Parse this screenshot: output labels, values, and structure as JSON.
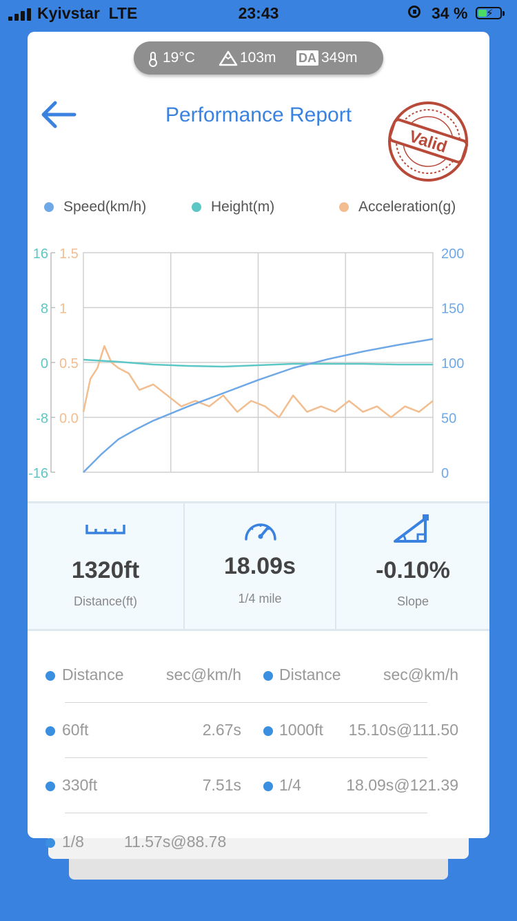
{
  "status_bar": {
    "carrier": "Kyivstar",
    "network": "LTE",
    "time": "23:43",
    "battery": "34 %"
  },
  "conditions": {
    "temperature": "19°C",
    "altitude": "103m",
    "da_badge": "DA",
    "density_altitude": "349m"
  },
  "header": {
    "title": "Performance Report",
    "stamp_text": "Valid"
  },
  "legend": [
    {
      "label": "Speed(km/h)",
      "color": "#6fa8e6"
    },
    {
      "label": "Height(m)",
      "color": "#5cc7c4"
    },
    {
      "label": "Acceleration(g)",
      "color": "#f2bd8f"
    }
  ],
  "chart_data": {
    "type": "line",
    "axes": {
      "height_ticks": [
        "16",
        "8",
        "0",
        "-8",
        "-16"
      ],
      "acceleration_ticks": [
        "1.5",
        "1",
        "0.5",
        "0.0"
      ],
      "speed_ticks": [
        "200",
        "150",
        "100",
        "50",
        "0"
      ]
    },
    "speed_ylim": [
      0,
      200
    ],
    "height_ylim": [
      -16,
      16
    ],
    "accel_ylim": [
      -0.5,
      1.5
    ],
    "grid": true,
    "series": [
      {
        "name": "Speed(km/h)",
        "axis": "right",
        "x": [
          0,
          0.05,
          0.1,
          0.15,
          0.2,
          0.3,
          0.4,
          0.5,
          0.6,
          0.7,
          0.8,
          0.9,
          1.0
        ],
        "values": [
          0,
          16,
          30,
          39,
          47,
          60,
          72,
          84,
          95,
          103,
          110,
          116,
          121.4
        ]
      },
      {
        "name": "Height(m)",
        "axis": "left",
        "x": [
          0,
          0.1,
          0.2,
          0.3,
          0.4,
          0.5,
          0.6,
          0.7,
          0.8,
          0.9,
          1.0
        ],
        "values": [
          0.4,
          0.1,
          -0.3,
          -0.5,
          -0.6,
          -0.4,
          -0.2,
          -0.2,
          -0.2,
          -0.3,
          -0.3
        ]
      },
      {
        "name": "Acceleration(g)",
        "axis": "acc",
        "x": [
          0,
          0.02,
          0.04,
          0.06,
          0.08,
          0.1,
          0.13,
          0.16,
          0.2,
          0.24,
          0.28,
          0.32,
          0.36,
          0.4,
          0.44,
          0.48,
          0.52,
          0.56,
          0.6,
          0.64,
          0.68,
          0.72,
          0.76,
          0.8,
          0.84,
          0.88,
          0.92,
          0.96,
          1.0
        ],
        "values": [
          0.05,
          0.35,
          0.45,
          0.65,
          0.5,
          0.45,
          0.4,
          0.25,
          0.3,
          0.2,
          0.1,
          0.15,
          0.1,
          0.2,
          0.05,
          0.15,
          0.1,
          0.0,
          0.2,
          0.05,
          0.1,
          0.05,
          0.15,
          0.05,
          0.1,
          0.0,
          0.1,
          0.05,
          0.15
        ]
      }
    ]
  },
  "summary": [
    {
      "value": "1320ft",
      "label": "Distance(ft)",
      "icon": "ruler-icon"
    },
    {
      "value": "18.09s",
      "label": "1/4 mile",
      "icon": "speedometer-icon"
    },
    {
      "value": "-0.10%",
      "label": "Slope",
      "icon": "slope-icon"
    }
  ],
  "splits": {
    "headers": {
      "distance": "Distance",
      "unit": "sec@km/h"
    },
    "left": [
      {
        "distance": "60ft",
        "result": "2.67s"
      },
      {
        "distance": "330ft",
        "result": "7.51s"
      }
    ],
    "right": [
      {
        "distance": "1000ft",
        "result": "15.10s@111.50"
      },
      {
        "distance": "1/4",
        "result": "18.09s@121.39"
      }
    ],
    "partial": {
      "distance": "1/8",
      "result": "11.57s@88.78"
    }
  }
}
